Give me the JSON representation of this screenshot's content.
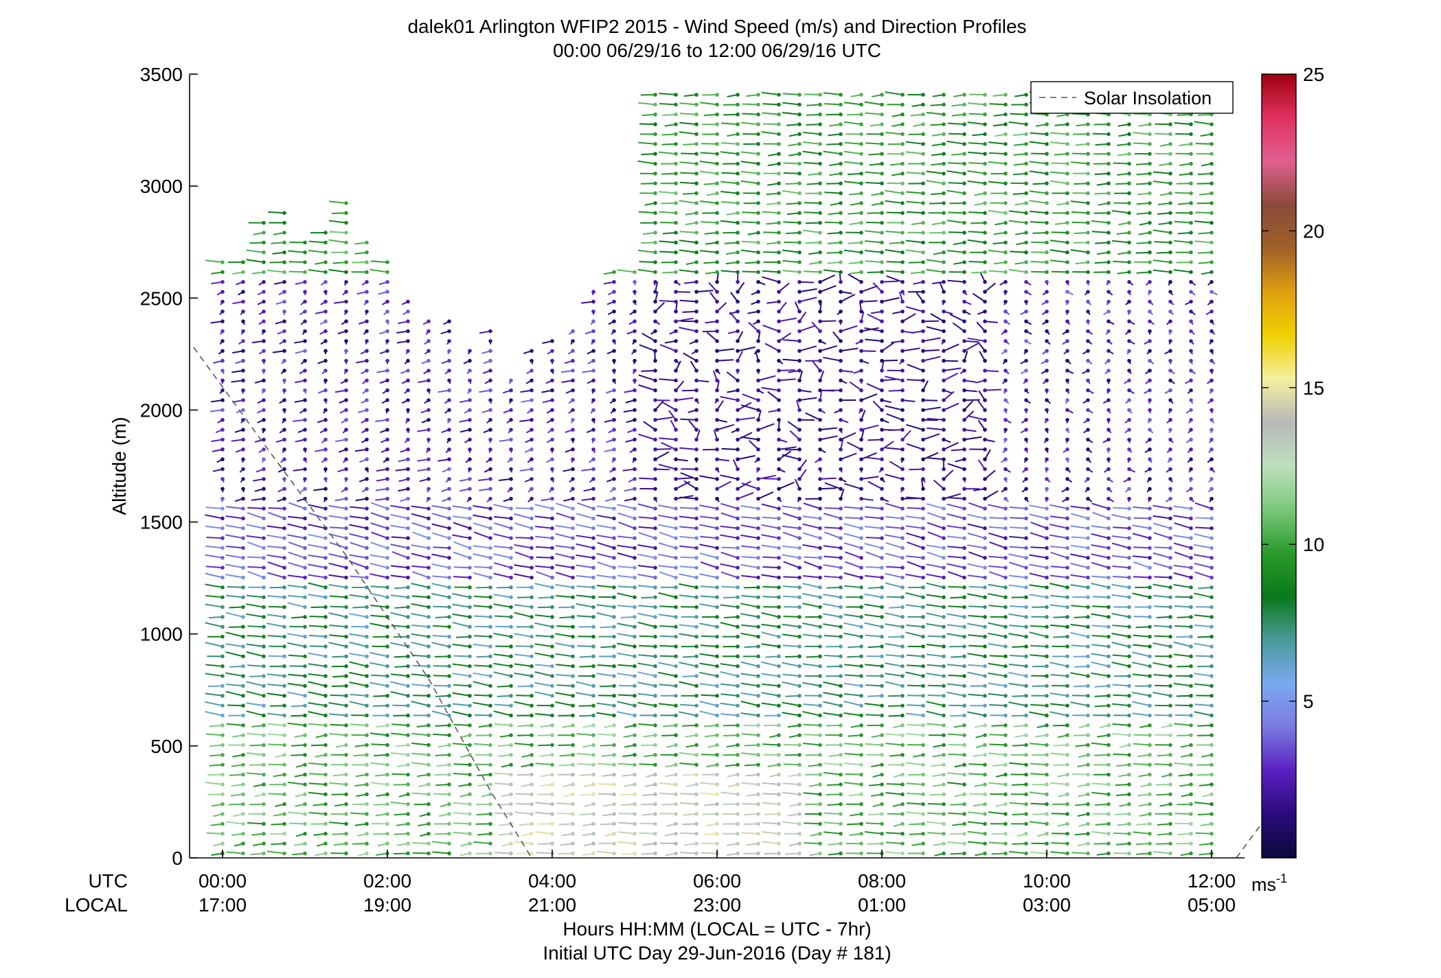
{
  "chart_data": {
    "type": "wind-barb-profile",
    "title_line1": "dalek01 Arlington WFIP2 2015 - Wind Speed (m/s) and Direction Profiles",
    "title_line2": "00:00 06/29/16 to 12:00 06/29/16  UTC",
    "ylabel": "Altitude (m)",
    "ylim": [
      0,
      3500
    ],
    "y_ticks": [
      "0",
      "500",
      "1000",
      "1500",
      "2000",
      "2500",
      "3000",
      "3500"
    ],
    "y_tick_values": [
      0,
      500,
      1000,
      1500,
      2000,
      2500,
      3000,
      3500
    ],
    "xlim_hours": [
      -0.4,
      12.4
    ],
    "x_tick_hours": [
      0,
      2,
      4,
      6,
      8,
      10,
      12
    ],
    "x_ticks_utc": [
      "00:00",
      "02:00",
      "04:00",
      "06:00",
      "08:00",
      "10:00",
      "12:00"
    ],
    "x_ticks_local": [
      "17:00",
      "19:00",
      "21:00",
      "23:00",
      "01:00",
      "03:00",
      "05:00"
    ],
    "row_label_utc": "UTC",
    "row_label_local": "LOCAL",
    "xlabel_line1": "Hours HH:MM  (LOCAL = UTC - 7hr)",
    "xlabel_line2": "Initial UTC Day 29-Jun-2016 (Day # 181)",
    "legend": "Solar Insolation",
    "colorbar": {
      "min": 0,
      "max": 25,
      "ticks": [
        5,
        10,
        15,
        20,
        25
      ],
      "tick_labels": [
        "5",
        "10",
        "15",
        "20",
        "25"
      ],
      "unit": "ms",
      "unit_exp": "-1",
      "colors": [
        "#0a0a3c",
        "#2a0a7a",
        "#5a1fc0",
        "#7a7ae0",
        "#7aaaf0",
        "#4a9a9a",
        "#0a7a1a",
        "#2a9a2a",
        "#7ac87a",
        "#bde0bd",
        "#b8b8b8",
        "#f4f0a0",
        "#f0d000",
        "#e0a010",
        "#a06028",
        "#8a4a3a",
        "#e06090",
        "#e03060",
        "#a00010"
      ]
    },
    "solar_insolation": [
      {
        "hour": -0.35,
        "alt": 2280
      },
      {
        "hour": 0.5,
        "alt": 1850
      },
      {
        "hour": 1.5,
        "alt": 1350
      },
      {
        "hour": 2.5,
        "alt": 800
      },
      {
        "hour": 3.25,
        "alt": 300
      },
      {
        "hour": 3.75,
        "alt": 0
      }
    ],
    "solar_insolation_end": [
      {
        "hour": 12.3,
        "alt": 0
      },
      {
        "hour": 12.6,
        "alt": 150
      }
    ],
    "profile_columns": 49,
    "profile_hours": [
      0,
      12
    ],
    "wind_regimes": [
      {
        "alt_from": 0,
        "alt_to": 600,
        "speed": 10.5,
        "dir": 235
      },
      {
        "alt_from": 600,
        "alt_to": 1250,
        "speed": 7.5,
        "dir": 255
      },
      {
        "alt_from": 1250,
        "alt_to": 1600,
        "speed": 3.5,
        "dir": 270
      },
      {
        "alt_from": 1600,
        "alt_to": 2600,
        "speed": 2.5,
        "dir": 200
      },
      {
        "alt_from": 2600,
        "alt_to": 3500,
        "speed": 9.5,
        "dir": 240
      }
    ],
    "jet_feature": {
      "hour_from": 3.5,
      "hour_to": 7.0,
      "alt_from": 0,
      "alt_to": 400,
      "speed": 14
    }
  }
}
